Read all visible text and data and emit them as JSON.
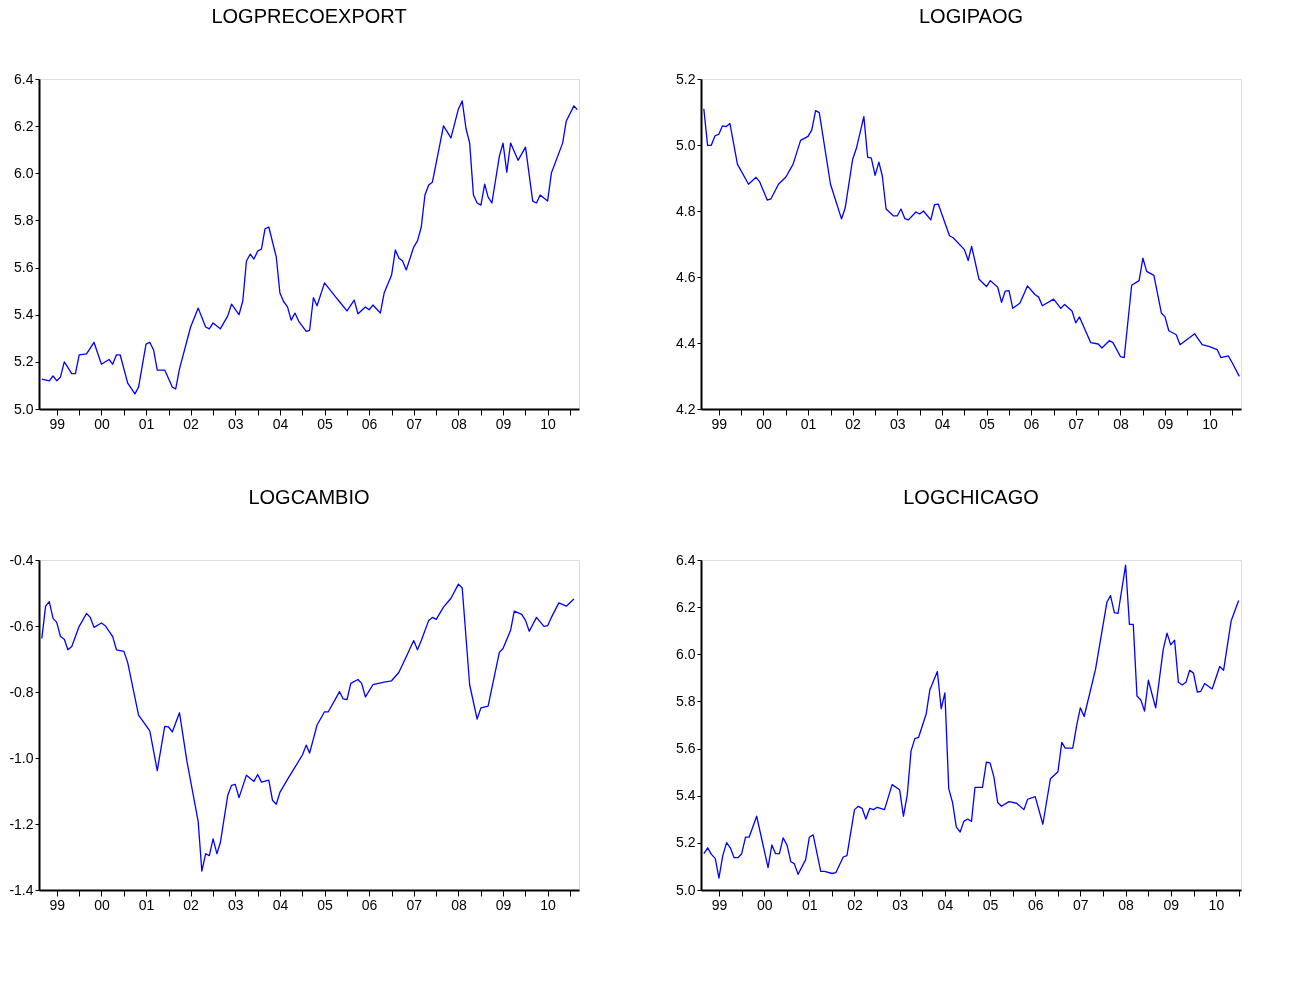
{
  "chart_data": [
    {
      "type": "line",
      "title": "LOGPRECOEXPORT",
      "color": "#0000ff",
      "grid": false,
      "xlim": [
        "1999-02-06",
        "2011-03-15"
      ],
      "yticks": [
        {
          "value": 5.0,
          "label": "5.0"
        },
        {
          "value": 5.2,
          "label": "5.2"
        },
        {
          "value": 5.4,
          "label": "5.4"
        },
        {
          "value": 5.6,
          "label": "5.6"
        },
        {
          "value": 5.8,
          "label": "5.8"
        },
        {
          "value": 6.0,
          "label": "6.0"
        },
        {
          "value": 6.2,
          "label": "6.2"
        },
        {
          "value": 6.4,
          "label": "6.4"
        }
      ],
      "ylim": [
        5.0,
        6.4
      ],
      "xticks": [
        {
          "value": "1999-07-01",
          "label": "99"
        },
        {
          "value": "2000-01-01",
          "label": null
        },
        {
          "value": "2000-07-01",
          "label": "00"
        },
        {
          "value": "2001-01-01",
          "label": null
        },
        {
          "value": "2001-07-01",
          "label": "01"
        },
        {
          "value": "2002-01-01",
          "label": null
        },
        {
          "value": "2002-07-01",
          "label": "02"
        },
        {
          "value": "2003-01-01",
          "label": null
        },
        {
          "value": "2003-07-01",
          "label": "03"
        },
        {
          "value": "2004-01-01",
          "label": null
        },
        {
          "value": "2004-07-01",
          "label": "04"
        },
        {
          "value": "2005-01-01",
          "label": null
        },
        {
          "value": "2005-07-01",
          "label": "05"
        },
        {
          "value": "2006-01-01",
          "label": null
        },
        {
          "value": "2006-07-01",
          "label": "06"
        },
        {
          "value": "2007-01-01",
          "label": null
        },
        {
          "value": "2007-07-01",
          "label": "07"
        },
        {
          "value": "2008-01-01",
          "label": null
        },
        {
          "value": "2008-07-01",
          "label": "08"
        },
        {
          "value": "2009-01-01",
          "label": null
        },
        {
          "value": "2009-07-01",
          "label": "09"
        },
        {
          "value": "2010-01-01",
          "label": null
        },
        {
          "value": "2010-07-01",
          "label": "10"
        },
        {
          "value": "2011-01-01",
          "label": null
        }
      ],
      "x": [
        "1999-03",
        "1999-05",
        "1999-06",
        "1999-07",
        "1999-08",
        "1999-09",
        "1999-11",
        "1999-12",
        "2000-01",
        "2000-03",
        "2000-05",
        "2000-07",
        "2000-09",
        "2000-10",
        "2000-11",
        "2000-12",
        "2001-02",
        "2001-04",
        "2001-05",
        "2001-07",
        "2001-08",
        "2001-09",
        "2001-10",
        "2001-12",
        "2002-02",
        "2002-03",
        "2002-04",
        "2002-07",
        "2002-09",
        "2002-11",
        "2002-12",
        "2003-01",
        "2003-03",
        "2003-05",
        "2003-06",
        "2003-08",
        "2003-09",
        "2003-10",
        "2003-11",
        "2003-12",
        "2004-01",
        "2004-02",
        "2004-03",
        "2004-04",
        "2004-06",
        "2004-07",
        "2004-08",
        "2004-09",
        "2004-10",
        "2004-11",
        "2004-12",
        "2005-02",
        "2005-03",
        "2005-04",
        "2005-05",
        "2005-07",
        "2005-10",
        "2005-11",
        "2006-01",
        "2006-03",
        "2006-04",
        "2006-06",
        "2006-07",
        "2006-08",
        "2006-10",
        "2006-11",
        "2007-01",
        "2007-02",
        "2007-03",
        "2007-04",
        "2007-05",
        "2007-07",
        "2007-08",
        "2007-09",
        "2007-10",
        "2007-11",
        "2007-12",
        "2008-03",
        "2008-05",
        "2008-07",
        "2008-08",
        "2008-09",
        "2008-10",
        "2008-11",
        "2008-12",
        "2009-01",
        "2009-02",
        "2009-03",
        "2009-04",
        "2009-06",
        "2009-07",
        "2009-08",
        "2009-09",
        "2009-11",
        "2010-01",
        "2010-03",
        "2010-04",
        "2010-05",
        "2010-07",
        "2010-08",
        "2010-11",
        "2010-12",
        "2011-02",
        "2011-03"
      ],
      "values": [
        5.127,
        5.119,
        5.14,
        5.12,
        5.136,
        5.2,
        5.15,
        5.15,
        5.23,
        5.234,
        5.283,
        5.19,
        5.21,
        5.19,
        5.23,
        5.23,
        5.11,
        5.064,
        5.093,
        5.275,
        5.283,
        5.25,
        5.165,
        5.165,
        5.093,
        5.085,
        5.17,
        5.348,
        5.428,
        5.348,
        5.34,
        5.365,
        5.34,
        5.395,
        5.445,
        5.4,
        5.458,
        5.628,
        5.657,
        5.636,
        5.67,
        5.679,
        5.764,
        5.772,
        5.645,
        5.492,
        5.455,
        5.433,
        5.377,
        5.407,
        5.373,
        5.329,
        5.334,
        5.472,
        5.438,
        5.535,
        5.475,
        5.455,
        5.416,
        5.462,
        5.404,
        5.433,
        5.421,
        5.441,
        5.407,
        5.492,
        5.568,
        5.675,
        5.641,
        5.628,
        5.59,
        5.687,
        5.713,
        5.772,
        5.908,
        5.95,
        5.962,
        6.201,
        6.15,
        6.273,
        6.307,
        6.19,
        6.128,
        5.908,
        5.874,
        5.865,
        5.954,
        5.899,
        5.874,
        6.072,
        6.128,
        6.005,
        6.128,
        6.055,
        6.111,
        5.882,
        5.874,
        5.908,
        5.882,
        6.001,
        6.128,
        6.222,
        6.286,
        6.27
      ]
    },
    {
      "type": "line",
      "title": "LOGIPAOG",
      "color": "#0000ff",
      "grid": false,
      "xlim": [
        "1999-02-06",
        "2011-03-15"
      ],
      "ylim": [
        4.2,
        5.2
      ],
      "yticks": [
        {
          "value": 4.2,
          "label": "4.2"
        },
        {
          "value": 4.4,
          "label": "4.4"
        },
        {
          "value": 4.6,
          "label": "4.6"
        },
        {
          "value": 4.8,
          "label": "4.8"
        },
        {
          "value": 5.0,
          "label": "5.0"
        },
        {
          "value": 5.2,
          "label": "5.2"
        }
      ],
      "xticks": [
        {
          "value": "1999-07-01",
          "label": "99"
        },
        {
          "value": "2000-01-01",
          "label": null
        },
        {
          "value": "2000-07-01",
          "label": "00"
        },
        {
          "value": "2001-01-01",
          "label": null
        },
        {
          "value": "2001-07-01",
          "label": "01"
        },
        {
          "value": "2002-01-01",
          "label": null
        },
        {
          "value": "2002-07-01",
          "label": "02"
        },
        {
          "value": "2003-01-01",
          "label": null
        },
        {
          "value": "2003-07-01",
          "label": "03"
        },
        {
          "value": "2004-01-01",
          "label": null
        },
        {
          "value": "2004-07-01",
          "label": "04"
        },
        {
          "value": "2005-01-01",
          "label": null
        },
        {
          "value": "2005-07-01",
          "label": "05"
        },
        {
          "value": "2006-01-01",
          "label": null
        },
        {
          "value": "2006-07-01",
          "label": "06"
        },
        {
          "value": "2007-01-01",
          "label": null
        },
        {
          "value": "2007-07-01",
          "label": "07"
        },
        {
          "value": "2008-01-01",
          "label": null
        },
        {
          "value": "2008-07-01",
          "label": "08"
        },
        {
          "value": "2009-01-01",
          "label": null
        },
        {
          "value": "2009-07-01",
          "label": "09"
        },
        {
          "value": "2010-01-01",
          "label": null
        },
        {
          "value": "2010-07-01",
          "label": "10"
        },
        {
          "value": "2011-01-01",
          "label": null
        }
      ],
      "x": [
        "1999-03",
        "1999-04",
        "1999-05",
        "1999-06",
        "1999-07",
        "1999-08",
        "1999-09",
        "1999-10",
        "1999-12",
        "2000-03",
        "2000-05",
        "2000-06",
        "2000-08",
        "2000-09",
        "2000-11",
        "2001-01",
        "2001-03",
        "2001-05",
        "2001-07",
        "2001-08",
        "2001-09",
        "2001-10",
        "2002-01",
        "2002-04",
        "2002-05",
        "2002-07",
        "2002-08",
        "2002-10",
        "2002-11",
        "2002-12",
        "2003-01",
        "2003-02",
        "2003-03",
        "2003-04",
        "2003-06",
        "2003-07",
        "2003-08",
        "2003-09",
        "2003-10",
        "2003-12",
        "2004-01",
        "2004-02",
        "2004-04",
        "2004-05",
        "2004-06",
        "2004-09",
        "2004-10",
        "2005-01",
        "2005-02",
        "2005-03",
        "2005-05",
        "2005-07",
        "2005-08",
        "2005-10",
        "2005-11",
        "2005-12",
        "2006-01",
        "2006-02",
        "2006-04",
        "2006-06",
        "2006-08",
        "2006-09",
        "2006-10",
        "2007-01",
        "2007-03",
        "2007-04",
        "2007-06",
        "2007-07",
        "2007-08",
        "2007-11",
        "2008-01",
        "2008-02",
        "2008-04",
        "2008-05",
        "2008-07",
        "2008-08",
        "2008-10",
        "2008-12",
        "2009-01",
        "2009-02",
        "2009-04",
        "2009-06",
        "2009-07",
        "2009-08",
        "2009-10",
        "2009-11",
        "2010-03",
        "2010-05",
        "2010-07",
        "2010-09",
        "2010-10",
        "2010-12",
        "2011-01",
        "2011-03"
      ],
      "values": [
        5.11,
        4.999,
        4.999,
        5.028,
        5.032,
        5.058,
        5.056,
        5.065,
        4.942,
        4.881,
        4.902,
        4.888,
        4.833,
        4.837,
        4.881,
        4.903,
        4.942,
        5.014,
        5.026,
        5.046,
        5.104,
        5.098,
        4.881,
        4.776,
        4.809,
        4.956,
        4.99,
        5.086,
        4.963,
        4.96,
        4.908,
        4.948,
        4.906,
        4.806,
        4.785,
        4.785,
        4.806,
        4.777,
        4.773,
        4.797,
        4.791,
        4.8,
        4.773,
        4.819,
        4.821,
        4.725,
        4.719,
        4.683,
        4.65,
        4.693,
        4.593,
        4.571,
        4.589,
        4.569,
        4.523,
        4.557,
        4.559,
        4.505,
        4.521,
        4.573,
        4.547,
        4.539,
        4.513,
        4.533,
        4.505,
        4.517,
        4.497,
        4.461,
        4.479,
        4.401,
        4.397,
        4.385,
        4.407,
        4.401,
        4.359,
        4.356,
        4.575,
        4.589,
        4.657,
        4.617,
        4.605,
        4.491,
        4.479,
        4.437,
        4.425,
        4.395,
        4.428,
        4.395,
        4.389,
        4.38,
        4.356,
        4.361,
        4.341,
        4.299
      ]
    },
    {
      "type": "line",
      "title": "LOGCAMBIO",
      "color": "#0000ff",
      "grid": false,
      "xlim": [
        "1999-02-06",
        "2011-03-15"
      ],
      "ylim": [
        -1.4,
        -0.4
      ],
      "yticks": [
        {
          "value": -1.4,
          "label": "-1.4"
        },
        {
          "value": -1.2,
          "label": "-1.2"
        },
        {
          "value": -1.0,
          "label": "-1.0"
        },
        {
          "value": -0.8,
          "label": "-0.8"
        },
        {
          "value": -0.6,
          "label": "-0.6"
        },
        {
          "value": -0.4,
          "label": "-0.4"
        }
      ],
      "xticks": [
        {
          "value": "1999-07-01",
          "label": "99"
        },
        {
          "value": "2000-01-01",
          "label": null
        },
        {
          "value": "2000-07-01",
          "label": "00"
        },
        {
          "value": "2001-01-01",
          "label": null
        },
        {
          "value": "2001-07-01",
          "label": "01"
        },
        {
          "value": "2002-01-01",
          "label": null
        },
        {
          "value": "2002-07-01",
          "label": "02"
        },
        {
          "value": "2003-01-01",
          "label": null
        },
        {
          "value": "2003-07-01",
          "label": "03"
        },
        {
          "value": "2004-01-01",
          "label": null
        },
        {
          "value": "2004-07-01",
          "label": "04"
        },
        {
          "value": "2005-01-01",
          "label": null
        },
        {
          "value": "2005-07-01",
          "label": "05"
        },
        {
          "value": "2006-01-01",
          "label": null
        },
        {
          "value": "2006-07-01",
          "label": "06"
        },
        {
          "value": "2007-01-01",
          "label": null
        },
        {
          "value": "2007-07-01",
          "label": "07"
        },
        {
          "value": "2008-01-01",
          "label": null
        },
        {
          "value": "2008-07-01",
          "label": "08"
        },
        {
          "value": "2009-01-01",
          "label": null
        },
        {
          "value": "2009-07-01",
          "label": "09"
        },
        {
          "value": "2010-01-01",
          "label": null
        },
        {
          "value": "2010-07-01",
          "label": "10"
        },
        {
          "value": "2011-01-01",
          "label": null
        }
      ],
      "x": [
        "1999-03",
        "1999-04",
        "1999-05",
        "1999-06",
        "1999-07",
        "1999-08",
        "1999-09",
        "1999-10",
        "1999-11",
        "2000-01",
        "2000-03",
        "2000-04",
        "2000-05",
        "2000-07",
        "2000-08",
        "2000-10",
        "2000-11",
        "2001-01",
        "2001-02",
        "2001-05",
        "2001-08",
        "2001-10",
        "2001-12",
        "2002-01",
        "2002-02",
        "2002-04",
        "2002-06",
        "2002-09",
        "2002-10",
        "2002-11",
        "2002-12",
        "2003-01",
        "2003-02",
        "2003-03",
        "2003-05",
        "2003-06",
        "2003-07",
        "2003-08",
        "2003-10",
        "2003-12",
        "2004-01",
        "2004-02",
        "2004-04",
        "2004-05",
        "2004-06",
        "2004-07",
        "2004-09",
        "2005-01",
        "2005-02",
        "2005-03",
        "2005-05",
        "2005-07",
        "2005-08",
        "2005-11",
        "2005-12",
        "2006-01",
        "2006-02",
        "2006-04",
        "2006-05",
        "2006-06",
        "2006-08",
        "2006-11",
        "2007-01",
        "2007-03",
        "2007-05",
        "2007-07",
        "2007-08",
        "2007-09",
        "2007-11",
        "2007-12",
        "2008-01",
        "2008-03",
        "2008-05",
        "2008-07",
        "2008-08",
        "2008-10",
        "2008-12",
        "2009-01",
        "2009-03",
        "2009-06",
        "2009-07",
        "2009-09",
        "2009-10",
        "2009-12",
        "2010-01",
        "2010-02",
        "2010-04",
        "2010-06",
        "2010-07",
        "2010-08",
        "2010-10",
        "2010-12",
        "2011-02"
      ],
      "values": [
        -0.638,
        -0.54,
        -0.526,
        -0.577,
        -0.589,
        -0.632,
        -0.64,
        -0.672,
        -0.662,
        -0.601,
        -0.562,
        -0.574,
        -0.604,
        -0.591,
        -0.599,
        -0.632,
        -0.672,
        -0.677,
        -0.711,
        -0.87,
        -0.918,
        -1.038,
        -0.904,
        -0.906,
        -0.921,
        -0.863,
        -1.01,
        -1.193,
        -1.343,
        -1.29,
        -1.296,
        -1.245,
        -1.29,
        -1.257,
        -1.113,
        -1.083,
        -1.08,
        -1.12,
        -1.052,
        -1.071,
        -1.05,
        -1.073,
        -1.067,
        -1.128,
        -1.14,
        -1.104,
        -1.065,
        -0.991,
        -0.961,
        -0.985,
        -0.9,
        -0.86,
        -0.86,
        -0.799,
        -0.821,
        -0.823,
        -0.774,
        -0.762,
        -0.774,
        -0.815,
        -0.778,
        -0.77,
        -0.766,
        -0.741,
        -0.693,
        -0.644,
        -0.672,
        -0.644,
        -0.583,
        -0.574,
        -0.58,
        -0.543,
        -0.516,
        -0.473,
        -0.485,
        -0.778,
        -0.882,
        -0.848,
        -0.843,
        -0.68,
        -0.668,
        -0.613,
        -0.555,
        -0.565,
        -0.583,
        -0.616,
        -0.574,
        -0.601,
        -0.599,
        -0.574,
        -0.53,
        -0.54,
        -0.518
      ]
    },
    {
      "type": "line",
      "title": "LOGCHICAGO",
      "color": "#0000ff",
      "grid": false,
      "xlim": [
        "1999-02-06",
        "2011-01-20"
      ],
      "ylim": [
        5.0,
        6.4
      ],
      "yticks": [
        {
          "value": 5.0,
          "label": "5.0"
        },
        {
          "value": 5.2,
          "label": "5.2"
        },
        {
          "value": 5.4,
          "label": "5.4"
        },
        {
          "value": 5.6,
          "label": "5.6"
        },
        {
          "value": 5.8,
          "label": "5.8"
        },
        {
          "value": 6.0,
          "label": "6.0"
        },
        {
          "value": 6.2,
          "label": "6.2"
        },
        {
          "value": 6.4,
          "label": "6.4"
        }
      ],
      "xticks": [
        {
          "value": "1999-07-01",
          "label": "99"
        },
        {
          "value": "2000-01-01",
          "label": null
        },
        {
          "value": "2000-07-01",
          "label": "00"
        },
        {
          "value": "2001-01-01",
          "label": null
        },
        {
          "value": "2001-07-01",
          "label": "01"
        },
        {
          "value": "2002-01-01",
          "label": null
        },
        {
          "value": "2002-07-01",
          "label": "02"
        },
        {
          "value": "2003-01-01",
          "label": null
        },
        {
          "value": "2003-07-01",
          "label": "03"
        },
        {
          "value": "2004-01-01",
          "label": null
        },
        {
          "value": "2004-07-01",
          "label": "04"
        },
        {
          "value": "2005-01-01",
          "label": null
        },
        {
          "value": "2005-07-01",
          "label": "05"
        },
        {
          "value": "2006-01-01",
          "label": null
        },
        {
          "value": "2006-07-01",
          "label": "06"
        },
        {
          "value": "2007-01-01",
          "label": null
        },
        {
          "value": "2007-07-01",
          "label": "07"
        },
        {
          "value": "2008-01-01",
          "label": null
        },
        {
          "value": "2008-07-01",
          "label": "08"
        },
        {
          "value": "2009-01-01",
          "label": null
        },
        {
          "value": "2009-07-01",
          "label": "09"
        },
        {
          "value": "2010-01-01",
          "label": null
        },
        {
          "value": "2010-07-01",
          "label": "10"
        },
        {
          "value": "2011-01-01",
          "label": null
        }
      ],
      "x": [
        "1999-03",
        "1999-04",
        "1999-05",
        "1999-06",
        "1999-07",
        "1999-08",
        "1999-09",
        "1999-10",
        "1999-11",
        "1999-12",
        "2000-01",
        "2000-02",
        "2000-03",
        "2000-05",
        "2000-08",
        "2000-09",
        "2000-10",
        "2000-11",
        "2000-12",
        "2001-01",
        "2001-02",
        "2001-03",
        "2001-04",
        "2001-06",
        "2001-07",
        "2001-08",
        "2001-10",
        "2001-11",
        "2002-01",
        "2002-02",
        "2002-04",
        "2002-05",
        "2002-07",
        "2002-08",
        "2002-09",
        "2002-10",
        "2002-11",
        "2002-12",
        "2003-01",
        "2003-03",
        "2003-05",
        "2003-07",
        "2003-08",
        "2003-09",
        "2003-10",
        "2003-11",
        "2003-12",
        "2004-02",
        "2004-03",
        "2004-05",
        "2004-06",
        "2004-07",
        "2004-08",
        "2004-09",
        "2004-10",
        "2004-11",
        "2004-12",
        "2005-01",
        "2005-02",
        "2005-03",
        "2005-05",
        "2005-06",
        "2005-07",
        "2005-08",
        "2005-09",
        "2005-10",
        "2005-12",
        "2006-02",
        "2006-04",
        "2006-05",
        "2006-07",
        "2006-09",
        "2006-11",
        "2007-01",
        "2007-02",
        "2007-03",
        "2007-05",
        "2007-06",
        "2007-07",
        "2007-08",
        "2007-11",
        "2008-02",
        "2008-03",
        "2008-04",
        "2008-05",
        "2008-07",
        "2008-08",
        "2008-09",
        "2008-10",
        "2008-11",
        "2008-12",
        "2009-01",
        "2009-03",
        "2009-05",
        "2009-06",
        "2009-07",
        "2009-08",
        "2009-09",
        "2009-10",
        "2009-11",
        "2009-12",
        "2010-01",
        "2010-02",
        "2010-03",
        "2010-04",
        "2010-06",
        "2010-08",
        "2010-09",
        "2010-11",
        "2011-01"
      ],
      "values": [
        5.154,
        5.179,
        5.151,
        5.134,
        5.05,
        5.146,
        5.201,
        5.179,
        5.137,
        5.137,
        5.154,
        5.224,
        5.224,
        5.313,
        5.095,
        5.191,
        5.154,
        5.154,
        5.221,
        5.191,
        5.12,
        5.112,
        5.067,
        5.129,
        5.224,
        5.234,
        5.079,
        5.079,
        5.07,
        5.074,
        5.14,
        5.146,
        5.341,
        5.355,
        5.346,
        5.301,
        5.346,
        5.341,
        5.351,
        5.341,
        5.447,
        5.425,
        5.313,
        5.405,
        5.589,
        5.642,
        5.647,
        5.748,
        5.848,
        5.927,
        5.769,
        5.836,
        5.43,
        5.371,
        5.268,
        5.246,
        5.291,
        5.301,
        5.291,
        5.435,
        5.435,
        5.542,
        5.539,
        5.48,
        5.371,
        5.355,
        5.375,
        5.368,
        5.341,
        5.385,
        5.396,
        5.279,
        5.472,
        5.502,
        5.626,
        5.602,
        5.602,
        5.697,
        5.773,
        5.736,
        5.937,
        6.221,
        6.249,
        6.177,
        6.174,
        6.378,
        6.127,
        6.127,
        5.823,
        5.806,
        5.759,
        5.89,
        5.773,
        6.02,
        6.09,
        6.04,
        6.06,
        5.881,
        5.87,
        5.881,
        5.932,
        5.92,
        5.84,
        5.843,
        5.876,
        5.853,
        5.948,
        5.932,
        6.141,
        6.228
      ]
    }
  ]
}
